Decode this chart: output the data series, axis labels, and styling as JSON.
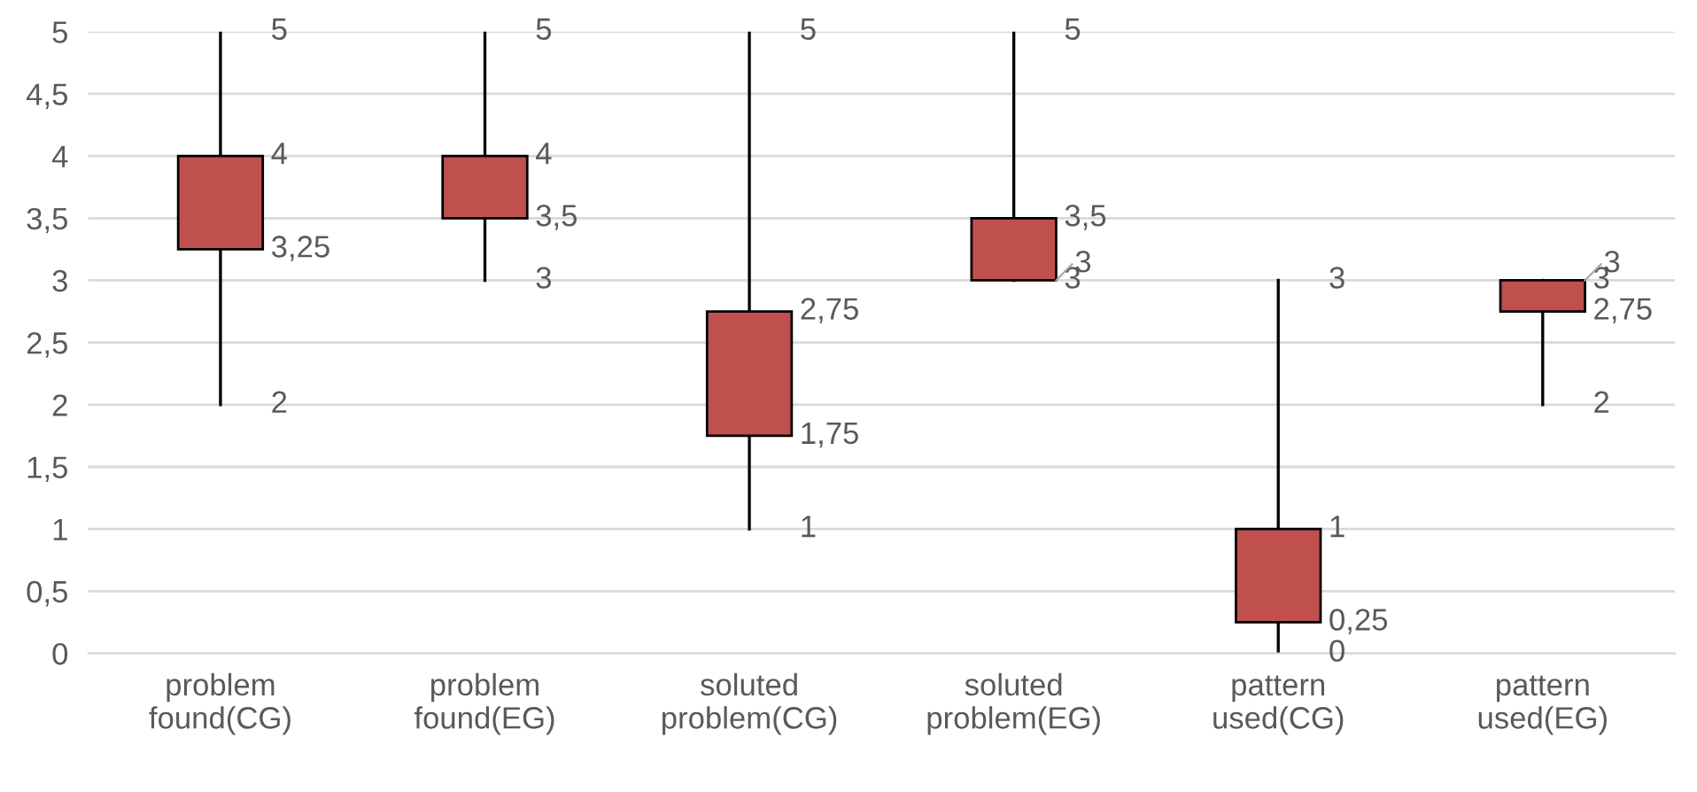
{
  "chart_data": {
    "type": "candlestick",
    "categories": [
      "problem\nfound(CG)",
      "problem\nfound(EG)",
      "soluted\nproblem(CG)",
      "soluted\nproblem(EG)",
      "pattern\nused(CG)",
      "pattern\nused(EG)"
    ],
    "ohlc": [
      [
        3.25,
        5,
        2,
        4
      ],
      [
        3.5,
        5,
        3,
        4
      ],
      [
        1.75,
        5,
        1,
        2.75
      ],
      [
        3,
        5,
        3,
        3.5
      ],
      [
        0.25,
        3,
        0,
        1
      ],
      [
        2.75,
        3,
        2,
        3
      ]
    ],
    "color": "#c0504d",
    "ylim": [
      0,
      5
    ],
    "yticks": [
      0,
      {
        "value": 0.5,
        "label": "0,5"
      },
      1,
      {
        "value": 1.5,
        "label": "1,5"
      },
      2,
      {
        "value": 2.5,
        "label": "2,5"
      },
      3,
      {
        "value": 3.5,
        "label": "3,5"
      },
      4,
      {
        "value": 4.5,
        "label": "4,5"
      },
      5
    ],
    "grid": "y",
    "value_labels": [
      [
        "3,25",
        "5",
        "2",
        "4"
      ],
      [
        "3,5",
        "5",
        "3",
        "4"
      ],
      [
        "1,75",
        "5",
        "1",
        "2,75"
      ],
      [
        "3",
        "5",
        "3",
        "3,5"
      ],
      [
        "0,25",
        "3",
        "0",
        "1"
      ],
      [
        "2,75",
        "3",
        "2",
        "3"
      ]
    ]
  }
}
